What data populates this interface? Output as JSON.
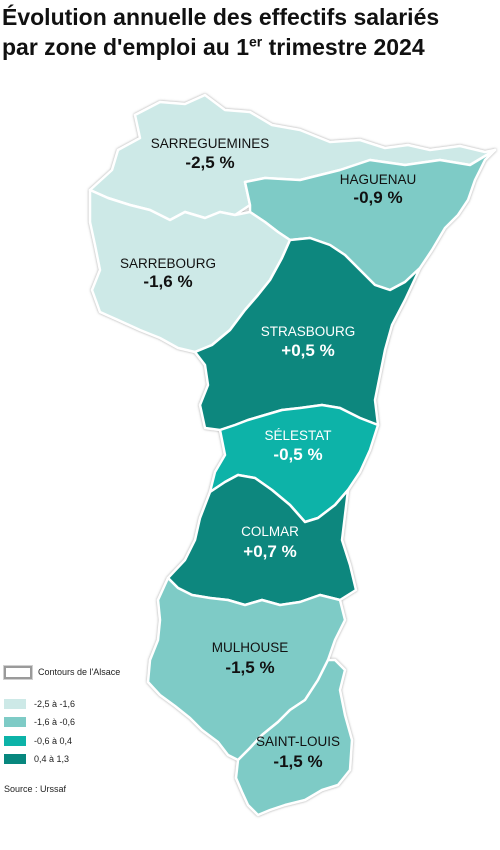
{
  "title": {
    "line1": "Évolution annuelle des effectifs salariés",
    "line2_prefix": "par zone d'emploi au 1",
    "line2_sup": "er",
    "line2_suffix": " trimestre 2024"
  },
  "zones": [
    {
      "id": "sarreguemines",
      "name": "SARREGUEMINES",
      "value": "-2,5 %",
      "class_color": "#cde9e7",
      "text_color": "#111111"
    },
    {
      "id": "haguenau",
      "name": "HAGUENAU",
      "value": "-0,9 %",
      "class_color": "#7ecbc6",
      "text_color": "#111111"
    },
    {
      "id": "sarrebourg",
      "name": "SARREBOURG",
      "value": "-1,6 %",
      "class_color": "#cde9e7",
      "text_color": "#111111"
    },
    {
      "id": "strasbourg",
      "name": "STRASBOURG",
      "value": "+0,5 %",
      "class_color": "#07877e",
      "text_color": "#ffffff"
    },
    {
      "id": "selestat",
      "name": "SÉLESTAT",
      "value": "-0,5 %",
      "class_color": "#0cb3a8",
      "text_color": "#ffffff"
    },
    {
      "id": "colmar",
      "name": "COLMAR",
      "value": "+0,7 %",
      "class_color": "#07877e",
      "text_color": "#ffffff"
    },
    {
      "id": "mulhouse",
      "name": "MULHOUSE",
      "value": "-1,5 %",
      "class_color": "#7ecbc6",
      "text_color": "#111111"
    },
    {
      "id": "saint-louis",
      "name": "SAINT-LOUIS",
      "value": "-1,5 %",
      "class_color": "#7ecbc6",
      "text_color": "#111111"
    }
  ],
  "legend": {
    "contour_label": "Contours de l'Alsace",
    "items": [
      {
        "label": "-2,5 à -1,6",
        "color": "#cde9e7"
      },
      {
        "label": "-1,6 à -0,6",
        "color": "#7ecbc6"
      },
      {
        "label": "-0,6 à 0,4",
        "color": "#0cb3a8"
      },
      {
        "label": "0,4 à 1,3",
        "color": "#07877e"
      }
    ]
  },
  "source": "Source : Urssaf"
}
